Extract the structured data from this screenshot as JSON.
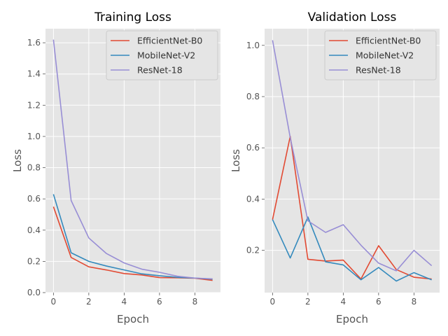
{
  "chart_data": [
    {
      "type": "line",
      "title": "Training Loss",
      "xlabel": "Epoch",
      "ylabel": "Loss",
      "xlim": [
        -0.45,
        9.45
      ],
      "ylim": [
        0.0,
        1.69
      ],
      "xticks": [
        "0",
        "2",
        "4",
        "6",
        "8"
      ],
      "yticks": [
        "0.0",
        "0.2",
        "0.4",
        "0.6",
        "0.8",
        "1.0",
        "1.2",
        "1.4",
        "1.6"
      ],
      "grid": true,
      "legend_position": "top-right",
      "x": [
        0,
        1,
        2,
        3,
        4,
        5,
        6,
        7,
        8,
        9
      ],
      "series": [
        {
          "name": "EfficientNet-B0",
          "color": "#E24A33",
          "values": [
            0.55,
            0.225,
            0.165,
            0.145,
            0.122,
            0.113,
            0.096,
            0.095,
            0.092,
            0.078
          ]
        },
        {
          "name": "MobileNet-V2",
          "color": "#348ABD",
          "values": [
            0.63,
            0.255,
            0.2,
            0.17,
            0.145,
            0.12,
            0.108,
            0.098,
            0.093,
            0.086
          ]
        },
        {
          "name": "ResNet-18",
          "color": "#988ED5",
          "values": [
            1.62,
            0.59,
            0.35,
            0.25,
            0.19,
            0.15,
            0.13,
            0.105,
            0.093,
            0.088
          ]
        }
      ]
    },
    {
      "type": "line",
      "title": "Validation Loss",
      "xlabel": "Epoch",
      "ylabel": "Loss",
      "xlim": [
        -0.45,
        9.45
      ],
      "ylim": [
        0.035,
        1.065
      ],
      "xticks": [
        "0",
        "2",
        "4",
        "6",
        "8"
      ],
      "yticks": [
        "0.2",
        "0.4",
        "0.6",
        "0.8",
        "1.0"
      ],
      "grid": true,
      "legend_position": "top-right",
      "x": [
        0,
        1,
        2,
        3,
        4,
        5,
        6,
        7,
        8,
        9
      ],
      "series": [
        {
          "name": "EfficientNet-B0",
          "color": "#E24A33",
          "values": [
            0.32,
            0.645,
            0.165,
            0.158,
            0.162,
            0.088,
            0.218,
            0.125,
            0.095,
            0.088
          ]
        },
        {
          "name": "MobileNet-V2",
          "color": "#348ABD",
          "values": [
            0.32,
            0.17,
            0.33,
            0.155,
            0.143,
            0.085,
            0.133,
            0.08,
            0.113,
            0.085
          ]
        },
        {
          "name": "ResNet-18",
          "color": "#988ED5",
          "values": [
            1.02,
            0.64,
            0.315,
            0.27,
            0.3,
            0.22,
            0.15,
            0.12,
            0.2,
            0.14
          ]
        }
      ]
    }
  ]
}
